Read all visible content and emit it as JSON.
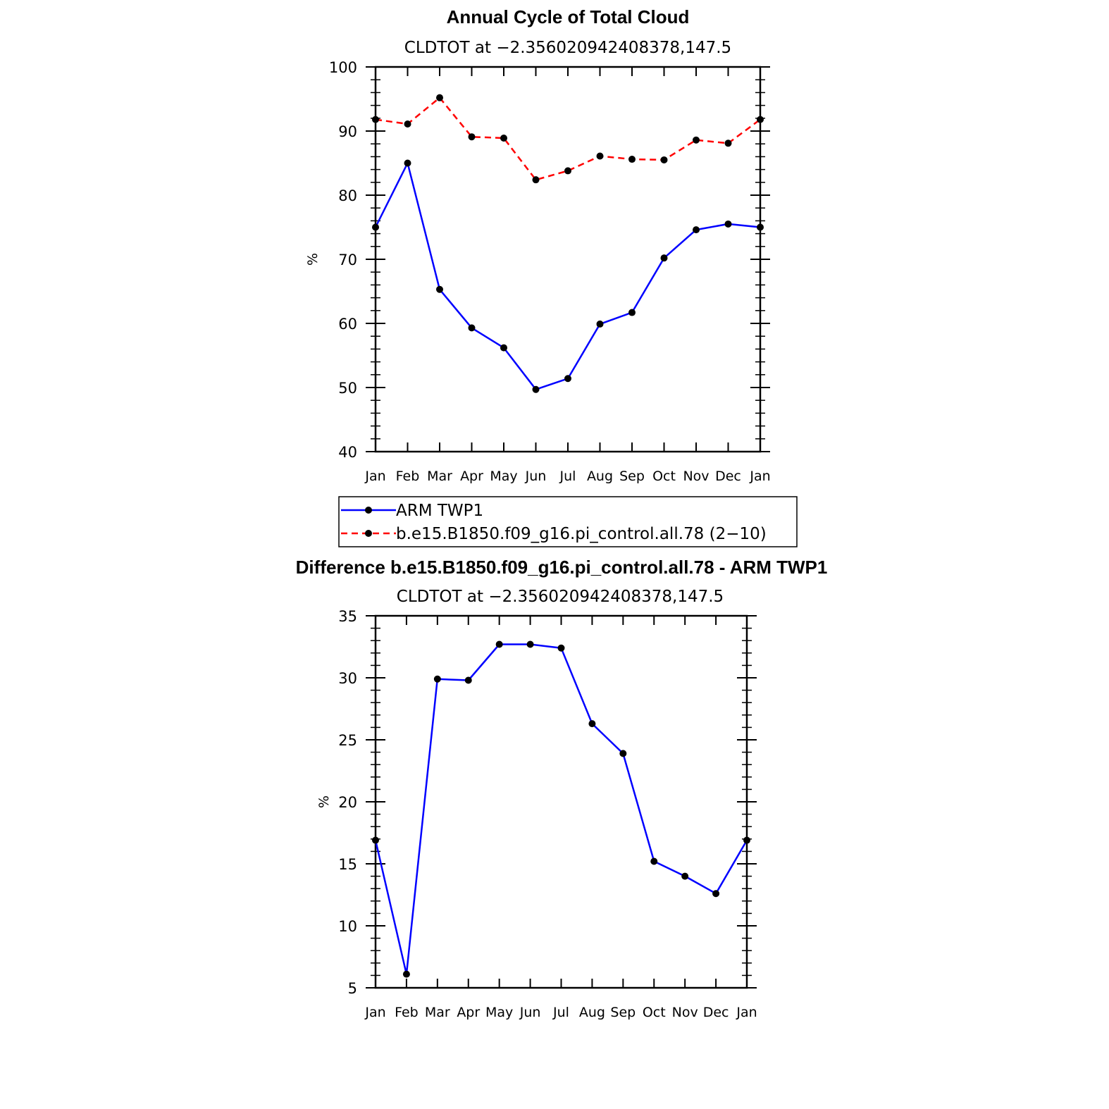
{
  "chart_data": [
    {
      "type": "line",
      "title": "Annual Cycle of Total Cloud",
      "subtitle": "CLDTOT at −2.356020942408378,147.5",
      "ylabel": "%",
      "xlabel": "",
      "categories": [
        "Jan",
        "Feb",
        "Mar",
        "Apr",
        "May",
        "Jun",
        "Jul",
        "Aug",
        "Sep",
        "Oct",
        "Nov",
        "Dec",
        "Jan"
      ],
      "ylim": [
        40,
        100
      ],
      "yticks": [
        "40",
        "50",
        "60",
        "70",
        "80",
        "90",
        "100"
      ],
      "grid": false,
      "legend_position": "bottom",
      "series": [
        {
          "name": "ARM TWP1",
          "color": "#0000ff",
          "dash": "solid",
          "values": [
            75.0,
            85.0,
            65.3,
            59.3,
            56.2,
            49.7,
            51.4,
            59.9,
            61.7,
            70.2,
            74.6,
            75.5,
            75.0
          ]
        },
        {
          "name": "b.e15.B1850.f09_g16.pi_control.all.78 (2−10)",
          "color": "#ff0000",
          "dash": "dashed",
          "values": [
            91.8,
            91.1,
            95.2,
            89.1,
            88.9,
            82.4,
            83.8,
            86.1,
            85.6,
            85.5,
            88.6,
            88.1,
            91.8
          ]
        }
      ]
    },
    {
      "type": "line",
      "title": "Difference b.e15.B1850.f09_g16.pi_control.all.78 - ARM TWP1",
      "subtitle": "CLDTOT at −2.356020942408378,147.5",
      "ylabel": "%",
      "xlabel": "",
      "categories": [
        "Jan",
        "Feb",
        "Mar",
        "Apr",
        "May",
        "Jun",
        "Jul",
        "Aug",
        "Sep",
        "Oct",
        "Nov",
        "Dec",
        "Jan"
      ],
      "ylim": [
        5,
        35
      ],
      "yticks": [
        "5",
        "10",
        "15",
        "20",
        "25",
        "30",
        "35"
      ],
      "grid": false,
      "series": [
        {
          "color": "#0000ff",
          "dash": "solid",
          "values": [
            16.9,
            6.1,
            29.9,
            29.8,
            32.7,
            32.7,
            32.4,
            26.3,
            23.9,
            15.2,
            14.0,
            12.6,
            16.9
          ]
        }
      ]
    }
  ]
}
